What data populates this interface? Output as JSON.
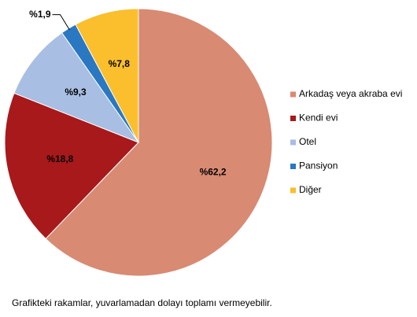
{
  "chart_data": {
    "type": "pie",
    "categories": [
      "Arkadaş veya akraba evi",
      "Kendi evi",
      "Otel",
      "Pansiyon",
      "Diğer"
    ],
    "values": [
      62.2,
      18.8,
      9.3,
      1.9,
      7.8
    ],
    "value_labels": [
      "%62,2",
      "%18,8",
      "%9,3",
      "%1,9",
      "%7,8"
    ],
    "colors": [
      "#d88a72",
      "#a8191b",
      "#a8bee2",
      "#2a78c2",
      "#fbbe2c"
    ],
    "legend": "right",
    "note": "Grafikteki rakamlar, yuvarlamadan dolayı toplamı vermeyebilir."
  }
}
